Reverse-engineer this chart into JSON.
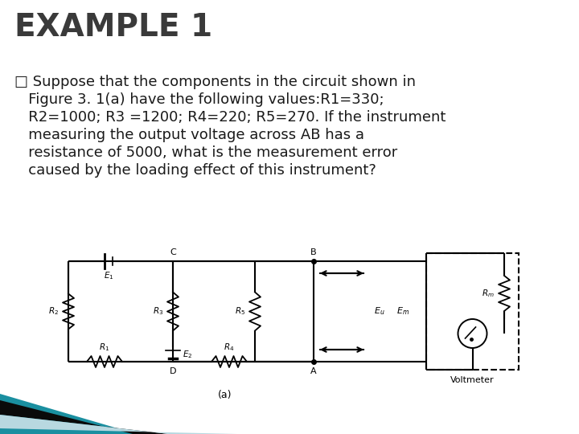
{
  "title": "EXAMPLE 1",
  "title_fontsize": 28,
  "title_color": "#3a3a3a",
  "body_fontsize": 13,
  "body_color": "#1a1a1a",
  "bg_color": "#ffffff",
  "caption": "(a)",
  "voltmeter_label": "Voltmeter",
  "corner_teal": "#1a8fa0",
  "corner_black": "#0a0a0a",
  "corner_lightblue": "#b8d8e0",
  "body_lines": [
    "□ Suppose that the components in the circuit shown in",
    "   Figure 3. 1(a) have the following values:R1=330;",
    "   R2=1000; R3 =1200; R4=220; R5=270. If the instrument",
    "   measuring the output voltage across AB has a",
    "   resistance of 5000, what is the measurement error",
    "   caused by the loading effect of this instrument?"
  ]
}
